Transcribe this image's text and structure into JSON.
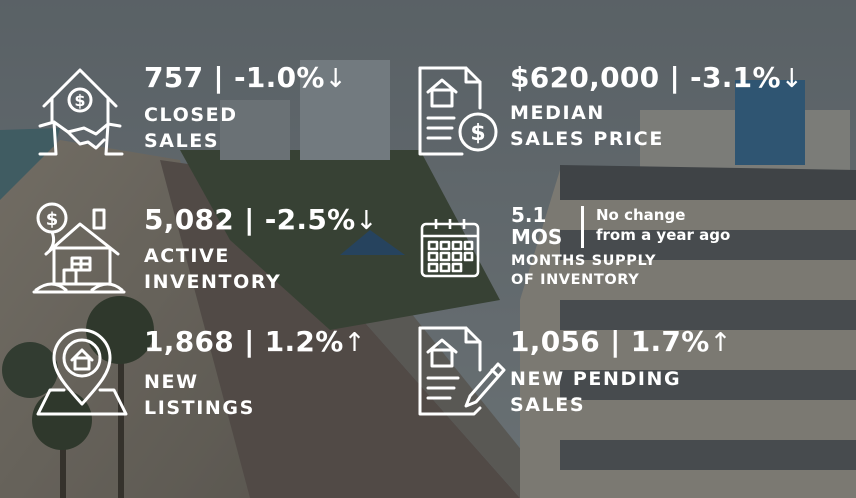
{
  "stats": [
    {
      "id": "closed-sales",
      "value": "757 ",
      "change": " | -1.0%",
      "arrow": "↓",
      "label_line1": "CLOSED",
      "label_line2": "SALES",
      "icon": "house-handshake-icon"
    },
    {
      "id": "median-price",
      "value": "$620,000",
      "change": " | -3.1%",
      "arrow": "↓",
      "label_line1": "MEDIAN",
      "label_line2": "SALES PRICE",
      "icon": "document-dollar-icon"
    },
    {
      "id": "active-inventory",
      "value": "5,082",
      "change": " | -2.5%",
      "arrow": "↓",
      "label_line1": "ACTIVE",
      "label_line2": "INVENTORY",
      "icon": "house-dollar-balloon-icon"
    },
    {
      "id": "new-listings",
      "value": "1,868",
      "change": " | 1.2%",
      "arrow": "↑",
      "label_line1": "NEW",
      "label_line2": "LISTINGS",
      "icon": "map-pin-house-icon"
    },
    {
      "id": "pending-sales",
      "value": "1,056",
      "change": " | 1.7%",
      "arrow": "↑",
      "label_line1": "NEW PENDING",
      "label_line2": "SALES",
      "icon": "document-pen-icon"
    }
  ],
  "months_supply": {
    "value": "5.1",
    "unit": "MOS",
    "note_line1": "No change",
    "note_line2": "from a year ago",
    "label_line1": "MONTHS SUPPLY",
    "label_line2": "OF INVENTORY",
    "icon": "calendar-icon"
  }
}
